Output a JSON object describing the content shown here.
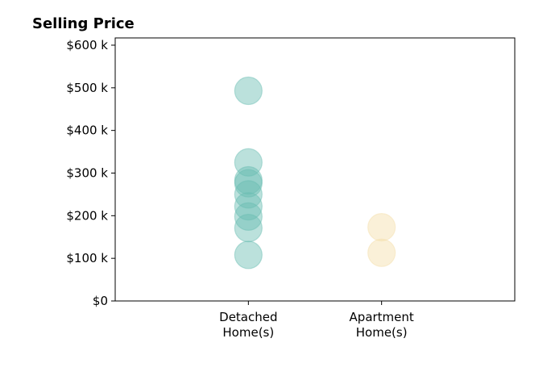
{
  "chart_data": {
    "type": "scatter",
    "title": "Selling Price",
    "xlabel": "",
    "ylabel": "",
    "categories": [
      "Detached\nHome(s)",
      "Apartment\nHome(s)"
    ],
    "series": [
      {
        "category": "Detached\nHome(s)",
        "color": "#69BDB2",
        "values": [
          493000,
          325000,
          283000,
          276000,
          250000,
          222000,
          198000,
          171000,
          108000
        ]
      },
      {
        "category": "Apartment\nHome(s)",
        "color": "#F5DEA9",
        "values": [
          173000,
          113000
        ]
      }
    ],
    "ylim": [
      0,
      617000
    ],
    "xlim": [
      0,
      3
    ],
    "yticks": [
      0,
      100000,
      200000,
      300000,
      400000,
      500000,
      600000
    ],
    "ytick_labels": [
      "$0",
      "$100 k",
      "$200 k",
      "$300 k",
      "$400 k",
      "$500 k",
      "$600 k"
    ],
    "grid": false,
    "marker_alpha": 0.45
  }
}
